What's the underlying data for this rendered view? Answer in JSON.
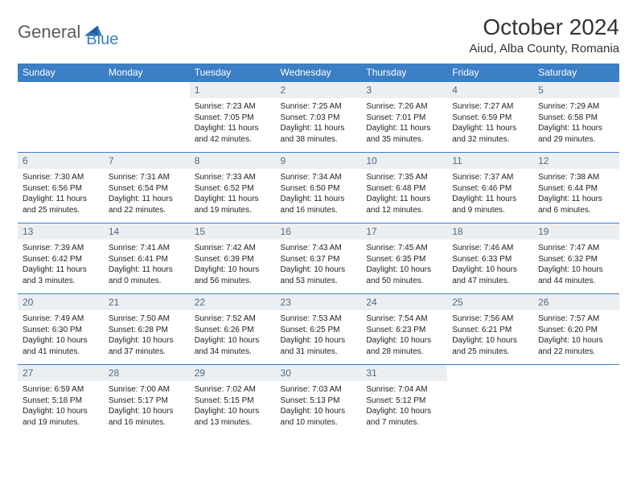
{
  "logo": {
    "part1": "General",
    "part2": "Blue"
  },
  "title": "October 2024",
  "location": "Aiud, Alba County, Romania",
  "colors": {
    "header_bg": "#3b7fc4",
    "daynum_bg": "#eceff1",
    "daynum_color": "#4a6a8a",
    "row_border": "#3b7fc4"
  },
  "weekdays": [
    "Sunday",
    "Monday",
    "Tuesday",
    "Wednesday",
    "Thursday",
    "Friday",
    "Saturday"
  ],
  "weeks": [
    [
      null,
      null,
      {
        "n": "1",
        "sr": "Sunrise: 7:23 AM",
        "ss": "Sunset: 7:05 PM",
        "dl1": "Daylight: 11 hours",
        "dl2": "and 42 minutes."
      },
      {
        "n": "2",
        "sr": "Sunrise: 7:25 AM",
        "ss": "Sunset: 7:03 PM",
        "dl1": "Daylight: 11 hours",
        "dl2": "and 38 minutes."
      },
      {
        "n": "3",
        "sr": "Sunrise: 7:26 AM",
        "ss": "Sunset: 7:01 PM",
        "dl1": "Daylight: 11 hours",
        "dl2": "and 35 minutes."
      },
      {
        "n": "4",
        "sr": "Sunrise: 7:27 AM",
        "ss": "Sunset: 6:59 PM",
        "dl1": "Daylight: 11 hours",
        "dl2": "and 32 minutes."
      },
      {
        "n": "5",
        "sr": "Sunrise: 7:29 AM",
        "ss": "Sunset: 6:58 PM",
        "dl1": "Daylight: 11 hours",
        "dl2": "and 29 minutes."
      }
    ],
    [
      {
        "n": "6",
        "sr": "Sunrise: 7:30 AM",
        "ss": "Sunset: 6:56 PM",
        "dl1": "Daylight: 11 hours",
        "dl2": "and 25 minutes."
      },
      {
        "n": "7",
        "sr": "Sunrise: 7:31 AM",
        "ss": "Sunset: 6:54 PM",
        "dl1": "Daylight: 11 hours",
        "dl2": "and 22 minutes."
      },
      {
        "n": "8",
        "sr": "Sunrise: 7:33 AM",
        "ss": "Sunset: 6:52 PM",
        "dl1": "Daylight: 11 hours",
        "dl2": "and 19 minutes."
      },
      {
        "n": "9",
        "sr": "Sunrise: 7:34 AM",
        "ss": "Sunset: 6:50 PM",
        "dl1": "Daylight: 11 hours",
        "dl2": "and 16 minutes."
      },
      {
        "n": "10",
        "sr": "Sunrise: 7:35 AM",
        "ss": "Sunset: 6:48 PM",
        "dl1": "Daylight: 11 hours",
        "dl2": "and 12 minutes."
      },
      {
        "n": "11",
        "sr": "Sunrise: 7:37 AM",
        "ss": "Sunset: 6:46 PM",
        "dl1": "Daylight: 11 hours",
        "dl2": "and 9 minutes."
      },
      {
        "n": "12",
        "sr": "Sunrise: 7:38 AM",
        "ss": "Sunset: 6:44 PM",
        "dl1": "Daylight: 11 hours",
        "dl2": "and 6 minutes."
      }
    ],
    [
      {
        "n": "13",
        "sr": "Sunrise: 7:39 AM",
        "ss": "Sunset: 6:42 PM",
        "dl1": "Daylight: 11 hours",
        "dl2": "and 3 minutes."
      },
      {
        "n": "14",
        "sr": "Sunrise: 7:41 AM",
        "ss": "Sunset: 6:41 PM",
        "dl1": "Daylight: 11 hours",
        "dl2": "and 0 minutes."
      },
      {
        "n": "15",
        "sr": "Sunrise: 7:42 AM",
        "ss": "Sunset: 6:39 PM",
        "dl1": "Daylight: 10 hours",
        "dl2": "and 56 minutes."
      },
      {
        "n": "16",
        "sr": "Sunrise: 7:43 AM",
        "ss": "Sunset: 6:37 PM",
        "dl1": "Daylight: 10 hours",
        "dl2": "and 53 minutes."
      },
      {
        "n": "17",
        "sr": "Sunrise: 7:45 AM",
        "ss": "Sunset: 6:35 PM",
        "dl1": "Daylight: 10 hours",
        "dl2": "and 50 minutes."
      },
      {
        "n": "18",
        "sr": "Sunrise: 7:46 AM",
        "ss": "Sunset: 6:33 PM",
        "dl1": "Daylight: 10 hours",
        "dl2": "and 47 minutes."
      },
      {
        "n": "19",
        "sr": "Sunrise: 7:47 AM",
        "ss": "Sunset: 6:32 PM",
        "dl1": "Daylight: 10 hours",
        "dl2": "and 44 minutes."
      }
    ],
    [
      {
        "n": "20",
        "sr": "Sunrise: 7:49 AM",
        "ss": "Sunset: 6:30 PM",
        "dl1": "Daylight: 10 hours",
        "dl2": "and 41 minutes."
      },
      {
        "n": "21",
        "sr": "Sunrise: 7:50 AM",
        "ss": "Sunset: 6:28 PM",
        "dl1": "Daylight: 10 hours",
        "dl2": "and 37 minutes."
      },
      {
        "n": "22",
        "sr": "Sunrise: 7:52 AM",
        "ss": "Sunset: 6:26 PM",
        "dl1": "Daylight: 10 hours",
        "dl2": "and 34 minutes."
      },
      {
        "n": "23",
        "sr": "Sunrise: 7:53 AM",
        "ss": "Sunset: 6:25 PM",
        "dl1": "Daylight: 10 hours",
        "dl2": "and 31 minutes."
      },
      {
        "n": "24",
        "sr": "Sunrise: 7:54 AM",
        "ss": "Sunset: 6:23 PM",
        "dl1": "Daylight: 10 hours",
        "dl2": "and 28 minutes."
      },
      {
        "n": "25",
        "sr": "Sunrise: 7:56 AM",
        "ss": "Sunset: 6:21 PM",
        "dl1": "Daylight: 10 hours",
        "dl2": "and 25 minutes."
      },
      {
        "n": "26",
        "sr": "Sunrise: 7:57 AM",
        "ss": "Sunset: 6:20 PM",
        "dl1": "Daylight: 10 hours",
        "dl2": "and 22 minutes."
      }
    ],
    [
      {
        "n": "27",
        "sr": "Sunrise: 6:59 AM",
        "ss": "Sunset: 5:18 PM",
        "dl1": "Daylight: 10 hours",
        "dl2": "and 19 minutes."
      },
      {
        "n": "28",
        "sr": "Sunrise: 7:00 AM",
        "ss": "Sunset: 5:17 PM",
        "dl1": "Daylight: 10 hours",
        "dl2": "and 16 minutes."
      },
      {
        "n": "29",
        "sr": "Sunrise: 7:02 AM",
        "ss": "Sunset: 5:15 PM",
        "dl1": "Daylight: 10 hours",
        "dl2": "and 13 minutes."
      },
      {
        "n": "30",
        "sr": "Sunrise: 7:03 AM",
        "ss": "Sunset: 5:13 PM",
        "dl1": "Daylight: 10 hours",
        "dl2": "and 10 minutes."
      },
      {
        "n": "31",
        "sr": "Sunrise: 7:04 AM",
        "ss": "Sunset: 5:12 PM",
        "dl1": "Daylight: 10 hours",
        "dl2": "and 7 minutes."
      },
      null,
      null
    ]
  ]
}
